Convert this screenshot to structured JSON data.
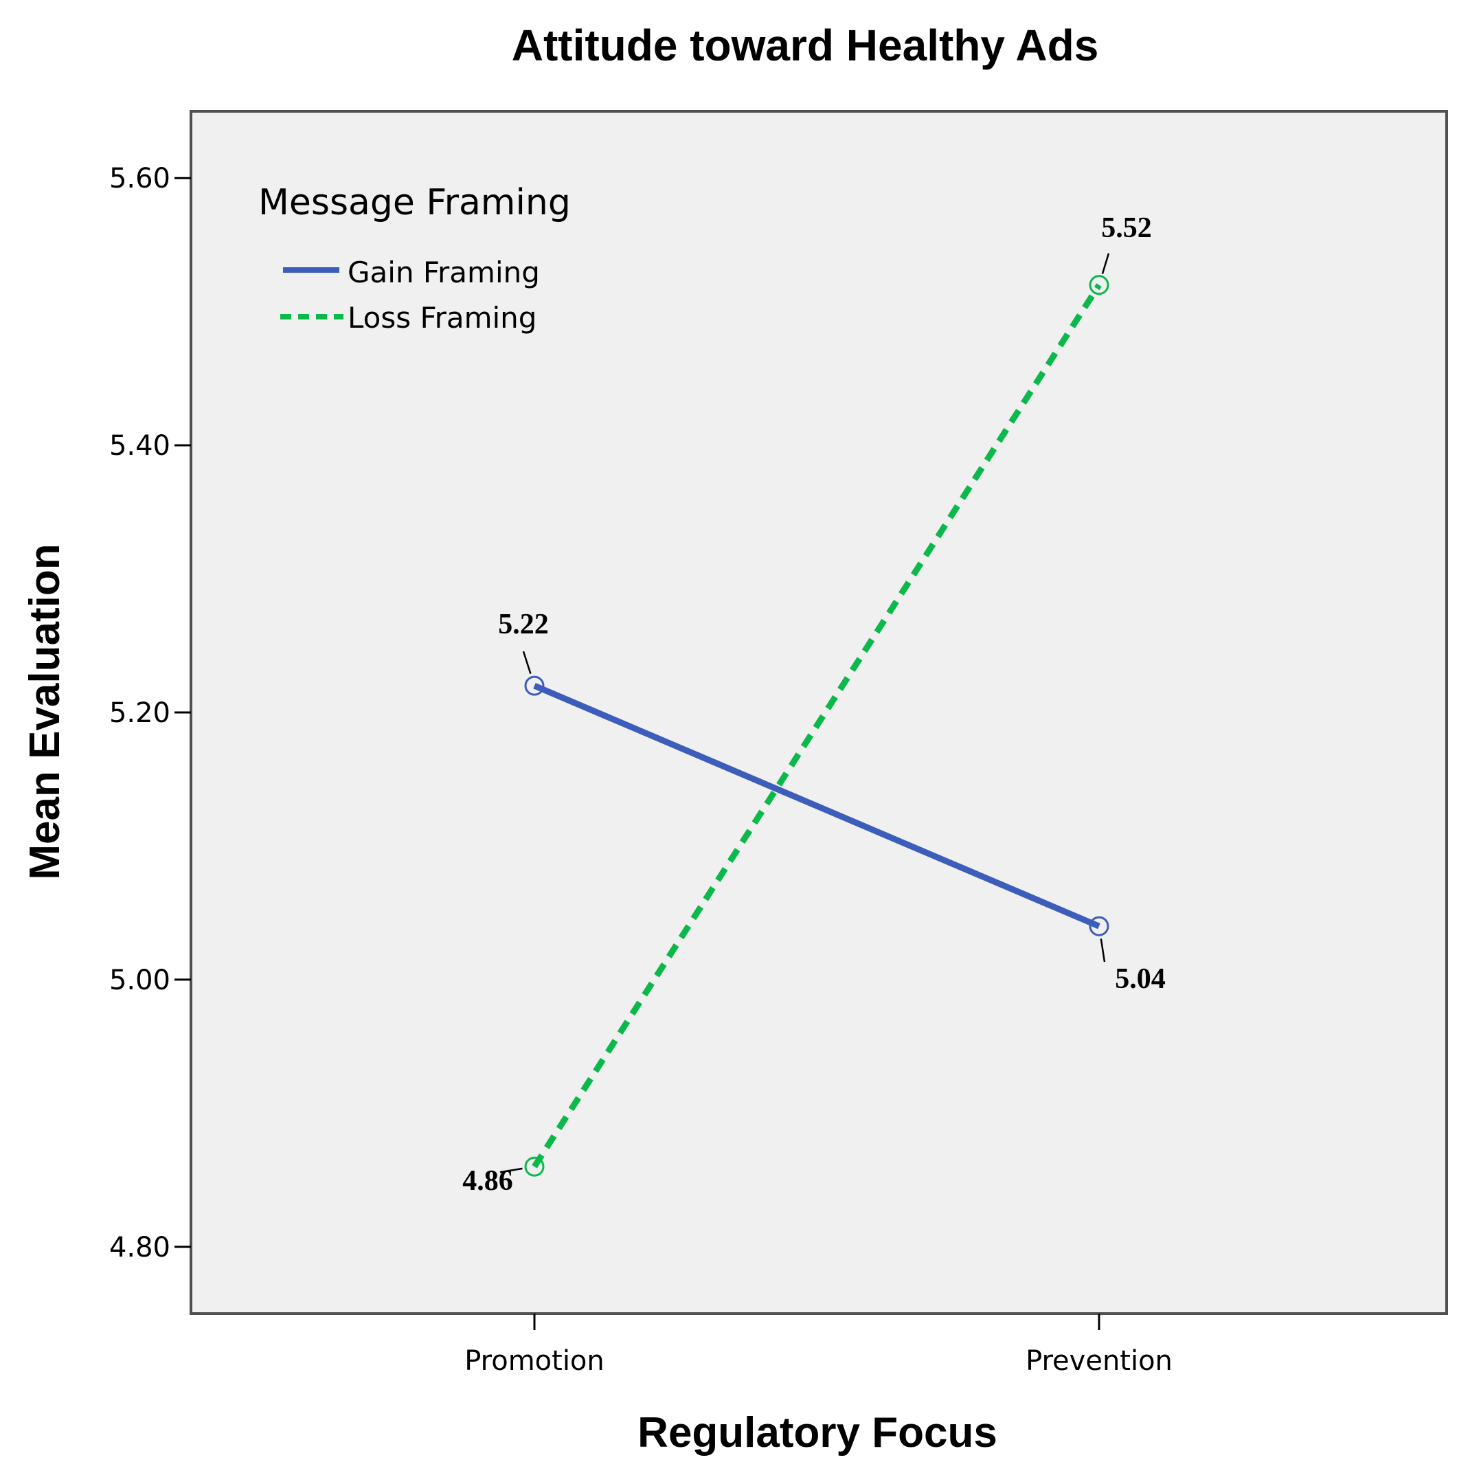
{
  "chart_data": {
    "type": "line",
    "title": "Attitude toward Healthy Ads",
    "xlabel": "Regulatory Focus",
    "ylabel": "Mean Evaluation",
    "categories": [
      "Promotion",
      "Prevention"
    ],
    "ylim": [
      4.75,
      5.65
    ],
    "yticks": [
      4.8,
      5.0,
      5.2,
      5.4,
      5.6
    ],
    "ytick_labels": [
      "4.80",
      "5.00",
      "5.20",
      "5.40",
      "5.60"
    ],
    "grid": false,
    "legend": {
      "title": "Message Framing",
      "placement": "top-left"
    },
    "series": [
      {
        "name": "Gain Framing",
        "values": [
          5.22,
          5.04
        ],
        "value_labels": [
          "5.22",
          "5.04"
        ],
        "color": "#3d5dbb",
        "style": "solid"
      },
      {
        "name": "Loss Framing",
        "values": [
          4.86,
          5.52
        ],
        "value_labels": [
          "4.86",
          "5.52"
        ],
        "color": "#0bb84a",
        "style": "dashed"
      }
    ],
    "plot_background": "#f0f0f0"
  }
}
